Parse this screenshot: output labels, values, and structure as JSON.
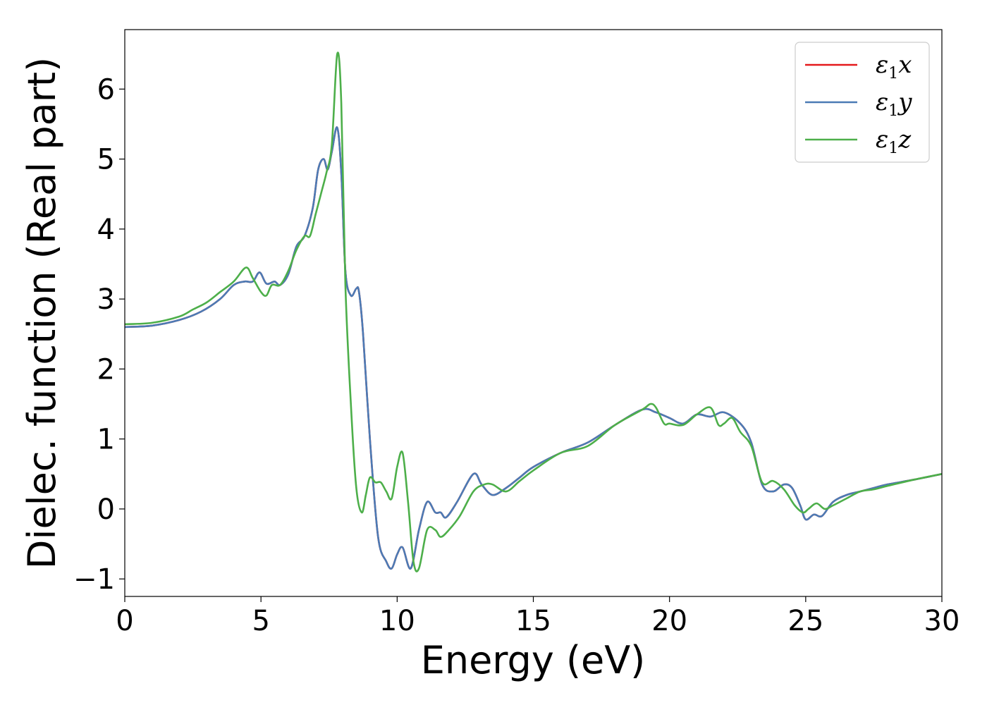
{
  "chart_data": {
    "type": "line",
    "xlabel": "Energy (eV)",
    "ylabel": "Dielec. function (Real part)",
    "xlim": [
      0,
      30
    ],
    "ylim": [
      -1.25,
      6.85
    ],
    "xticks": [
      0,
      5,
      10,
      15,
      20,
      25,
      30
    ],
    "xtick_labels": [
      "0",
      "5",
      "10",
      "15",
      "20",
      "25",
      "30"
    ],
    "yticks": [
      -1,
      0,
      1,
      2,
      3,
      4,
      5,
      6
    ],
    "ytick_labels": [
      "−1",
      "0",
      "1",
      "2",
      "3",
      "4",
      "5",
      "6"
    ],
    "grid": false,
    "legend_position": "top-right",
    "series": [
      {
        "name": "ε1x",
        "legend_base": "ε",
        "legend_sub": "1",
        "legend_var": "x",
        "color": "#e41a1c",
        "x": [
          0,
          1,
          2,
          2.8,
          3.5,
          4.0,
          4.4,
          4.7,
          4.95,
          5.2,
          5.5,
          5.7,
          6.0,
          6.3,
          6.6,
          6.9,
          7.1,
          7.3,
          7.45,
          7.6,
          7.8,
          7.95,
          8.1,
          8.3,
          8.5,
          8.6,
          8.75,
          9.0,
          9.3,
          9.6,
          9.8,
          10.0,
          10.2,
          10.5,
          10.8,
          11.1,
          11.4,
          11.6,
          11.8,
          12.2,
          12.8,
          13.1,
          13.5,
          14.0,
          14.5,
          15.0,
          16.0,
          17.0,
          18.0,
          19.0,
          19.5,
          20.0,
          20.5,
          21.0,
          21.5,
          22.0,
          22.6,
          23.0,
          23.4,
          23.8,
          24.2,
          24.5,
          24.8,
          25.0,
          25.3,
          25.6,
          26.0,
          26.5,
          27.0,
          27.5,
          28.0,
          29.0,
          30.0
        ],
        "values": [
          2.6,
          2.62,
          2.7,
          2.82,
          3.0,
          3.2,
          3.25,
          3.25,
          3.38,
          3.22,
          3.25,
          3.2,
          3.35,
          3.75,
          3.9,
          4.3,
          4.85,
          5.0,
          4.85,
          5.1,
          5.45,
          4.8,
          3.4,
          3.05,
          3.15,
          3.1,
          2.5,
          1.0,
          -0.4,
          -0.75,
          -0.85,
          -0.65,
          -0.55,
          -0.85,
          -0.3,
          0.1,
          -0.05,
          -0.05,
          -0.12,
          0.1,
          0.5,
          0.35,
          0.2,
          0.3,
          0.45,
          0.6,
          0.8,
          0.95,
          1.2,
          1.42,
          1.38,
          1.3,
          1.22,
          1.35,
          1.32,
          1.38,
          1.22,
          0.95,
          0.35,
          0.25,
          0.35,
          0.3,
          0.05,
          -0.15,
          -0.08,
          -0.1,
          0.1,
          0.2,
          0.25,
          0.3,
          0.35,
          0.42,
          0.5
        ]
      },
      {
        "name": "ε1y",
        "legend_base": "ε",
        "legend_sub": "1",
        "legend_var": "y",
        "color": "#4b7bb5",
        "x": [
          0,
          1,
          2,
          2.8,
          3.5,
          4.0,
          4.4,
          4.7,
          4.95,
          5.2,
          5.5,
          5.7,
          6.0,
          6.3,
          6.6,
          6.9,
          7.1,
          7.3,
          7.45,
          7.6,
          7.8,
          7.95,
          8.1,
          8.3,
          8.5,
          8.6,
          8.75,
          9.0,
          9.3,
          9.6,
          9.8,
          10.0,
          10.2,
          10.5,
          10.8,
          11.1,
          11.4,
          11.6,
          11.8,
          12.2,
          12.8,
          13.1,
          13.5,
          14.0,
          14.5,
          15.0,
          16.0,
          17.0,
          18.0,
          19.0,
          19.5,
          20.0,
          20.5,
          21.0,
          21.5,
          22.0,
          22.6,
          23.0,
          23.4,
          23.8,
          24.2,
          24.5,
          24.8,
          25.0,
          25.3,
          25.6,
          26.0,
          26.5,
          27.0,
          27.5,
          28.0,
          29.0,
          30.0
        ],
        "values": [
          2.6,
          2.62,
          2.7,
          2.82,
          3.0,
          3.2,
          3.25,
          3.25,
          3.38,
          3.22,
          3.25,
          3.2,
          3.35,
          3.75,
          3.9,
          4.3,
          4.85,
          5.0,
          4.85,
          5.1,
          5.45,
          4.8,
          3.4,
          3.05,
          3.15,
          3.1,
          2.5,
          1.0,
          -0.4,
          -0.75,
          -0.85,
          -0.65,
          -0.55,
          -0.85,
          -0.3,
          0.1,
          -0.05,
          -0.05,
          -0.12,
          0.1,
          0.5,
          0.35,
          0.2,
          0.3,
          0.45,
          0.6,
          0.8,
          0.95,
          1.2,
          1.42,
          1.38,
          1.3,
          1.22,
          1.35,
          1.32,
          1.38,
          1.22,
          0.95,
          0.35,
          0.25,
          0.35,
          0.3,
          0.05,
          -0.15,
          -0.08,
          -0.1,
          0.1,
          0.2,
          0.25,
          0.3,
          0.35,
          0.42,
          0.5
        ]
      },
      {
        "name": "ε1z",
        "legend_base": "ε",
        "legend_sub": "1",
        "legend_var": "z",
        "color": "#4daf4a",
        "x": [
          0,
          1,
          2,
          2.5,
          3.0,
          3.5,
          4.0,
          4.45,
          4.7,
          5.0,
          5.2,
          5.4,
          5.7,
          6.0,
          6.3,
          6.6,
          6.8,
          7.0,
          7.2,
          7.4,
          7.6,
          7.8,
          7.95,
          8.1,
          8.3,
          8.5,
          8.7,
          8.85,
          9.0,
          9.2,
          9.4,
          9.6,
          9.8,
          10.0,
          10.2,
          10.4,
          10.6,
          10.8,
          11.1,
          11.4,
          11.6,
          11.9,
          12.3,
          12.8,
          13.2,
          13.5,
          14.0,
          14.5,
          15.0,
          16.0,
          17.0,
          18.0,
          19.0,
          19.3,
          19.5,
          19.8,
          20.0,
          20.5,
          21.0,
          21.5,
          21.8,
          22.0,
          22.3,
          22.6,
          23.0,
          23.4,
          23.8,
          24.2,
          24.6,
          24.9,
          25.1,
          25.4,
          25.7,
          26.0,
          26.5,
          27.0,
          27.5,
          28.0,
          29.0,
          30.0
        ],
        "values": [
          2.64,
          2.66,
          2.75,
          2.85,
          2.95,
          3.1,
          3.25,
          3.45,
          3.3,
          3.1,
          3.05,
          3.2,
          3.2,
          3.4,
          3.7,
          3.9,
          3.9,
          4.2,
          4.5,
          4.8,
          5.2,
          6.5,
          5.8,
          3.2,
          1.5,
          0.3,
          -0.05,
          0.2,
          0.45,
          0.38,
          0.38,
          0.25,
          0.15,
          0.6,
          0.8,
          0.1,
          -0.75,
          -0.85,
          -0.3,
          -0.3,
          -0.4,
          -0.3,
          -0.1,
          0.25,
          0.35,
          0.35,
          0.25,
          0.4,
          0.55,
          0.8,
          0.9,
          1.2,
          1.42,
          1.5,
          1.45,
          1.22,
          1.22,
          1.2,
          1.35,
          1.45,
          1.2,
          1.22,
          1.3,
          1.1,
          0.9,
          0.38,
          0.4,
          0.28,
          0.05,
          -0.05,
          0.0,
          0.08,
          0.0,
          0.05,
          0.15,
          0.25,
          0.28,
          0.33,
          0.42,
          0.5
        ]
      }
    ]
  }
}
